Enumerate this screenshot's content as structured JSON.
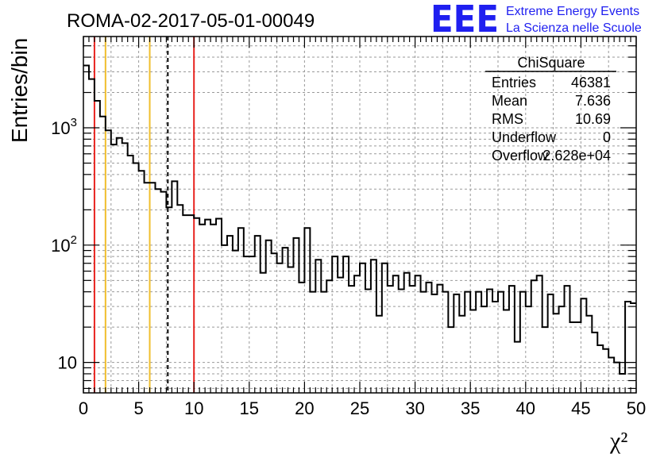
{
  "chart_data": {
    "type": "histogram",
    "title": "ROMA-02-2017-05-01-00049",
    "xlabel": "χ²",
    "ylabel": "Entries/bin",
    "xlim": [
      0,
      50
    ],
    "ylim": [
      5.5,
      6000
    ],
    "y_scale": "log",
    "grid": true,
    "bin_width": 0.5,
    "x_ticks": [
      "0",
      "5",
      "10",
      "15",
      "20",
      "25",
      "30",
      "35",
      "40",
      "45",
      "50"
    ],
    "y_ticks": [
      {
        "value": 10,
        "base": "10",
        "exp": ""
      },
      {
        "value": 100,
        "base": "10",
        "exp": "2"
      },
      {
        "value": 1000,
        "base": "10",
        "exp": "3"
      }
    ],
    "values": [
      3400,
      2600,
      1700,
      1250,
      950,
      720,
      820,
      740,
      580,
      500,
      430,
      340,
      340,
      300,
      285,
      210,
      350,
      220,
      180,
      180,
      170,
      150,
      165,
      150,
      168,
      100,
      120,
      90,
      140,
      80,
      80,
      120,
      58,
      110,
      85,
      70,
      95,
      65,
      115,
      48,
      140,
      40,
      75,
      40,
      50,
      80,
      53,
      80,
      45,
      55,
      70,
      42,
      75,
      25,
      70,
      45,
      55,
      42,
      58,
      45,
      55,
      40,
      48,
      38,
      46,
      40,
      20,
      38,
      25,
      40,
      28,
      40,
      30,
      42,
      33,
      40,
      28,
      45,
      15,
      40,
      30,
      50,
      55,
      20,
      38,
      26,
      30,
      45,
      22,
      22,
      35,
      25,
      18,
      14,
      13,
      11,
      10,
      8,
      33,
      32
    ],
    "vertical_lines": [
      {
        "x": 1,
        "color": "#e8231f",
        "style": "solid"
      },
      {
        "x": 2,
        "color": "#f0be2d",
        "style": "solid"
      },
      {
        "x": 6,
        "color": "#f0be2d",
        "style": "solid"
      },
      {
        "x": 7.636,
        "color": "#000000",
        "style": "dashed"
      },
      {
        "x": 10,
        "color": "#e8231f",
        "style": "solid"
      }
    ],
    "stats_box": {
      "title": "ChiSquare",
      "rows": [
        {
          "label": "Entries",
          "value": "46381"
        },
        {
          "label": "Mean",
          "value": "7.636"
        },
        {
          "label": "RMS",
          "value": "10.69"
        },
        {
          "label": "Underflow",
          "value": "0"
        },
        {
          "label": "Overflow",
          "value": "2.628e+04"
        }
      ]
    }
  },
  "logo": {
    "mark": "EEE",
    "line1": "Extreme Energy Events",
    "line2": "La Scienza nelle Scuole",
    "color": "#1f1ff0"
  }
}
